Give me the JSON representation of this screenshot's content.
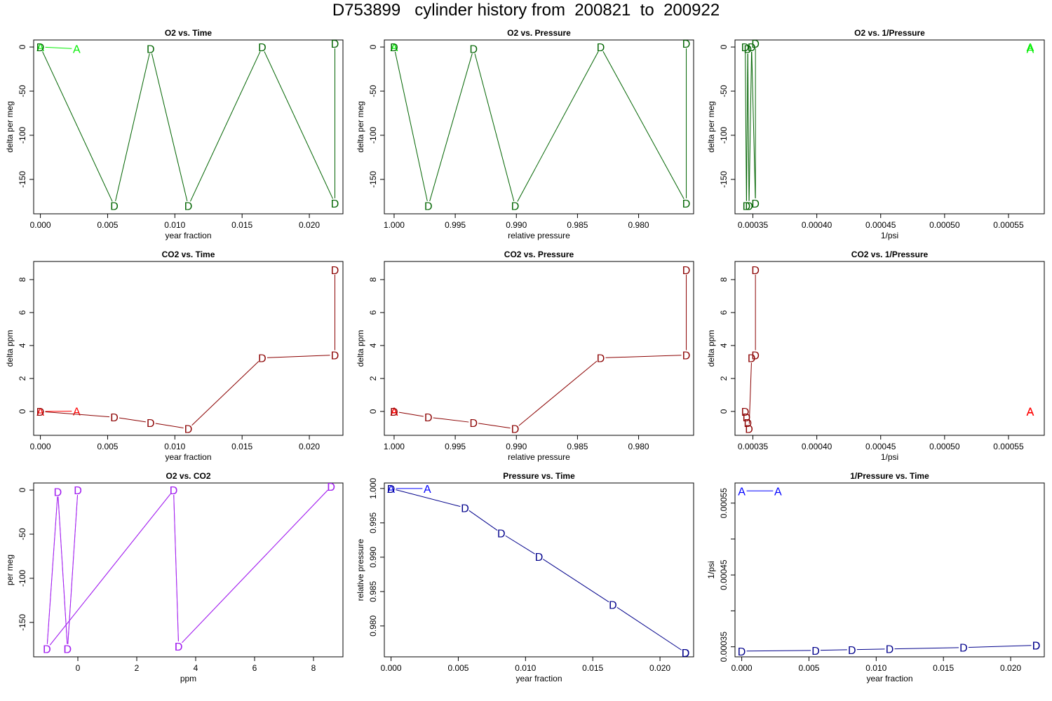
{
  "title": "D753899   cylinder history from  200821  to  200922",
  "chart_data": [
    {
      "id": "o2-time",
      "type": "line",
      "title": "O2 vs. Time",
      "xlabel": "year fraction",
      "ylabel": "delta per meg",
      "xlim": [
        -0.0005,
        0.0225
      ],
      "ylim": [
        -189,
        8
      ],
      "xticks": [
        0,
        0.005,
        0.01,
        0.015,
        0.02
      ],
      "xticklabels": [
        "0.000",
        "0.005",
        "0.010",
        "0.015",
        "0.020"
      ],
      "yticks": [
        0,
        -50,
        -100,
        -150
      ],
      "yticklabels": [
        "0",
        "-50",
        "-100",
        "-150"
      ],
      "series": [
        {
          "color": "#00ee00",
          "points": [
            [
              0,
              0,
              "A"
            ],
            [
              0.0027,
              -2,
              "A"
            ]
          ]
        },
        {
          "color": "#006400",
          "points": [
            [
              0,
              0,
              "D"
            ],
            [
              0.0055,
              -180,
              "D"
            ],
            [
              0.0082,
              -2,
              "D"
            ],
            [
              0.011,
              -180,
              "D"
            ],
            [
              0.0165,
              0,
              "D"
            ],
            [
              0.0219,
              -177,
              "D"
            ],
            [
              0.0219,
              4,
              "D"
            ]
          ]
        }
      ]
    },
    {
      "id": "o2-pressure",
      "type": "line",
      "title": "O2 vs. Pressure",
      "xlabel": "relative pressure",
      "ylabel": "delta per meg",
      "xlim": [
        1.0008,
        0.9755
      ],
      "ylim": [
        -189,
        8
      ],
      "xticks": [
        1.0,
        0.995,
        0.99,
        0.985,
        0.98
      ],
      "xticklabels": [
        "1.000",
        "0.995",
        "0.990",
        "0.985",
        "0.980"
      ],
      "yticks": [
        0,
        -50,
        -100,
        -150
      ],
      "yticklabels": [
        "0",
        "-50",
        "-100",
        "-150"
      ],
      "series": [
        {
          "color": "#00ee00",
          "points": [
            [
              1.0,
              0,
              "A"
            ],
            [
              1.0,
              0,
              "A"
            ]
          ]
        },
        {
          "color": "#006400",
          "points": [
            [
              1.0,
              0,
              "D"
            ],
            [
              0.9972,
              -180,
              "D"
            ],
            [
              0.9935,
              -2,
              "D"
            ],
            [
              0.9901,
              -180,
              "D"
            ],
            [
              0.9831,
              0,
              "D"
            ],
            [
              0.9761,
              -177,
              "D"
            ],
            [
              0.9761,
              4,
              "D"
            ]
          ]
        }
      ]
    },
    {
      "id": "o2-inv-pressure",
      "type": "line",
      "title": "O2 vs. 1/Pressure",
      "xlabel": "1/psi",
      "ylabel": "delta per meg",
      "xlim": [
        0.000336,
        0.000578
      ],
      "ylim": [
        -189,
        8
      ],
      "xticks": [
        0.00035,
        0.0004,
        0.00045,
        0.0005,
        0.00055
      ],
      "xticklabels": [
        "0.00035",
        "0.00040",
        "0.00045",
        "0.00050",
        "0.00055"
      ],
      "yticks": [
        0,
        -50,
        -100,
        -150
      ],
      "yticklabels": [
        "0",
        "-50",
        "-100",
        "-150"
      ],
      "series": [
        {
          "color": "#00ee00",
          "points": [
            [
              0.000567,
              0,
              "A"
            ],
            [
              0.000567,
              -2,
              "A"
            ]
          ]
        },
        {
          "color": "#006400",
          "points": [
            [
              0.000344,
              0,
              "D"
            ],
            [
              0.000345,
              -180,
              "D"
            ],
            [
              0.000346,
              -2,
              "D"
            ],
            [
              0.000347,
              -180,
              "D"
            ],
            [
              0.000349,
              0,
              "D"
            ],
            [
              0.000352,
              -177,
              "D"
            ],
            [
              0.000352,
              4,
              "D"
            ]
          ]
        }
      ]
    },
    {
      "id": "co2-time",
      "type": "line",
      "title": "CO2 vs. Time",
      "xlabel": "year fraction",
      "ylabel": "delta ppm",
      "xlim": [
        -0.0005,
        0.0225
      ],
      "ylim": [
        -1.45,
        9.1
      ],
      "xticks": [
        0,
        0.005,
        0.01,
        0.015,
        0.02
      ],
      "xticklabels": [
        "0.000",
        "0.005",
        "0.010",
        "0.015",
        "0.020"
      ],
      "yticks": [
        0,
        2,
        4,
        6,
        8
      ],
      "yticklabels": [
        "0",
        "2",
        "4",
        "6",
        "8"
      ],
      "series": [
        {
          "color": "#ff0000",
          "points": [
            [
              0,
              0,
              "A"
            ],
            [
              0.0027,
              0.02,
              "A"
            ]
          ]
        },
        {
          "color": "#8b0000",
          "points": [
            [
              0,
              0,
              "D"
            ],
            [
              0.0055,
              -0.35,
              "D"
            ],
            [
              0.0082,
              -0.68,
              "D"
            ],
            [
              0.011,
              -1.05,
              "D"
            ],
            [
              0.0165,
              3.25,
              "D"
            ],
            [
              0.0219,
              3.42,
              "D"
            ],
            [
              0.0219,
              8.6,
              "D"
            ]
          ]
        }
      ]
    },
    {
      "id": "co2-pressure",
      "type": "line",
      "title": "CO2 vs. Pressure",
      "xlabel": "relative pressure",
      "ylabel": "delta ppm",
      "xlim": [
        1.0008,
        0.9755
      ],
      "ylim": [
        -1.45,
        9.1
      ],
      "xticks": [
        1.0,
        0.995,
        0.99,
        0.985,
        0.98
      ],
      "xticklabels": [
        "1.000",
        "0.995",
        "0.990",
        "0.985",
        "0.980"
      ],
      "yticks": [
        0,
        2,
        4,
        6,
        8
      ],
      "yticklabels": [
        "0",
        "2",
        "4",
        "6",
        "8"
      ],
      "series": [
        {
          "color": "#ff0000",
          "points": [
            [
              1.0,
              0,
              "A"
            ],
            [
              1.0,
              0.02,
              "A"
            ]
          ]
        },
        {
          "color": "#8b0000",
          "points": [
            [
              1.0,
              0,
              "D"
            ],
            [
              0.9972,
              -0.35,
              "D"
            ],
            [
              0.9935,
              -0.68,
              "D"
            ],
            [
              0.9901,
              -1.05,
              "D"
            ],
            [
              0.9831,
              3.25,
              "D"
            ],
            [
              0.9761,
              3.42,
              "D"
            ],
            [
              0.9761,
              8.6,
              "D"
            ]
          ]
        }
      ]
    },
    {
      "id": "co2-inv-pressure",
      "type": "line",
      "title": "CO2 vs. 1/Pressure",
      "xlabel": "1/psi",
      "ylabel": "delta ppm",
      "xlim": [
        0.000336,
        0.000578
      ],
      "ylim": [
        -1.45,
        9.1
      ],
      "xticks": [
        0.00035,
        0.0004,
        0.00045,
        0.0005,
        0.00055
      ],
      "xticklabels": [
        "0.00035",
        "0.00040",
        "0.00045",
        "0.00050",
        "0.00055"
      ],
      "yticks": [
        0,
        2,
        4,
        6,
        8
      ],
      "yticklabels": [
        "0",
        "2",
        "4",
        "6",
        "8"
      ],
      "series": [
        {
          "color": "#ff0000",
          "points": [
            [
              0.000567,
              0,
              "A"
            ],
            [
              0.000567,
              0.02,
              "A"
            ]
          ]
        },
        {
          "color": "#8b0000",
          "points": [
            [
              0.000344,
              0,
              "D"
            ],
            [
              0.000345,
              -0.35,
              "D"
            ],
            [
              0.000346,
              -0.68,
              "D"
            ],
            [
              0.000347,
              -1.05,
              "D"
            ],
            [
              0.000349,
              3.25,
              "D"
            ],
            [
              0.000352,
              3.42,
              "D"
            ],
            [
              0.000352,
              8.6,
              "D"
            ]
          ]
        }
      ]
    },
    {
      "id": "o2-co2",
      "type": "line",
      "title": "O2 vs. CO2",
      "xlabel": "ppm",
      "ylabel": "per meg",
      "xlim": [
        -1.5,
        9.0
      ],
      "ylim": [
        -189,
        8
      ],
      "xticks": [
        0,
        2,
        4,
        6,
        8
      ],
      "xticklabels": [
        "0",
        "2",
        "4",
        "6",
        "8"
      ],
      "yticks": [
        0,
        -50,
        -100,
        -150
      ],
      "yticklabels": [
        "0",
        "-50",
        "-100",
        "-150"
      ],
      "series": [
        {
          "color": "#cc55ee",
          "points": [
            [
              0,
              0,
              "D"
            ],
            [
              -0.35,
              -180,
              "D"
            ],
            [
              -0.68,
              -2,
              "D"
            ],
            [
              -1.05,
              -180,
              "D"
            ],
            [
              3.25,
              0,
              "D"
            ],
            [
              3.42,
              -177,
              "D"
            ],
            [
              8.6,
              4,
              "D"
            ]
          ]
        },
        {
          "color": "#a020f0",
          "points": [
            [
              0,
              0,
              "D"
            ],
            [
              -0.35,
              -180,
              "D"
            ],
            [
              -0.68,
              -2,
              "D"
            ],
            [
              -1.05,
              -180,
              "D"
            ],
            [
              3.25,
              0,
              "D"
            ],
            [
              3.42,
              -177,
              "D"
            ],
            [
              8.6,
              4,
              "D"
            ]
          ]
        }
      ]
    },
    {
      "id": "pressure-time",
      "type": "line",
      "title": "Pressure vs. Time",
      "xlabel": "year fraction",
      "ylabel": "relative pressure",
      "xlim": [
        -0.0005,
        0.0225
      ],
      "ylim": [
        0.9755,
        1.0008
      ],
      "xticks": [
        0,
        0.005,
        0.01,
        0.015,
        0.02
      ],
      "xticklabels": [
        "0.000",
        "0.005",
        "0.010",
        "0.015",
        "0.020"
      ],
      "yticks": [
        0.98,
        0.985,
        0.99,
        0.995,
        1.0
      ],
      "yticklabels": [
        "0.980",
        "0.985",
        "0.990",
        "0.995",
        "1.000"
      ],
      "series": [
        {
          "color": "#0000ff",
          "points": [
            [
              0,
              1.0,
              "A"
            ],
            [
              0.0027,
              1.0,
              "A"
            ]
          ]
        },
        {
          "color": "#00008b",
          "points": [
            [
              0,
              1.0,
              "D"
            ],
            [
              0.0055,
              0.9972,
              "D"
            ],
            [
              0.0082,
              0.9935,
              "D"
            ],
            [
              0.011,
              0.9901,
              "D"
            ],
            [
              0.0165,
              0.9831,
              "D"
            ],
            [
              0.0219,
              0.9761,
              "D"
            ],
            [
              0.0219,
              0.9761,
              "D"
            ]
          ]
        }
      ]
    },
    {
      "id": "inv-pressure-time",
      "type": "line",
      "title": "1/Pressure vs. Time",
      "xlabel": "year fraction",
      "ylabel": "1/psi",
      "xlim": [
        -0.0005,
        0.0225
      ],
      "ylim": [
        0.000336,
        0.000578
      ],
      "xticks": [
        0,
        0.005,
        0.01,
        0.015,
        0.02
      ],
      "xticklabels": [
        "0.000",
        "0.005",
        "0.010",
        "0.015",
        "0.020"
      ],
      "yticks": [
        0.00035,
        0.0004,
        0.00045,
        0.0005,
        0.00055
      ],
      "yticklabels": [
        "0.00035",
        "",
        "0.00045",
        "",
        "0.00055"
      ],
      "series": [
        {
          "color": "#0000ff",
          "points": [
            [
              0,
              0.000567,
              "A"
            ],
            [
              0.0027,
              0.000567,
              "A"
            ]
          ]
        },
        {
          "color": "#00008b",
          "points": [
            [
              0,
              0.000344,
              "D"
            ],
            [
              0.0055,
              0.000345,
              "D"
            ],
            [
              0.0082,
              0.000346,
              "D"
            ],
            [
              0.011,
              0.000347,
              "D"
            ],
            [
              0.0165,
              0.000349,
              "D"
            ],
            [
              0.0219,
              0.000352,
              "D"
            ],
            [
              0.0219,
              0.000352,
              "D"
            ]
          ]
        }
      ]
    }
  ]
}
